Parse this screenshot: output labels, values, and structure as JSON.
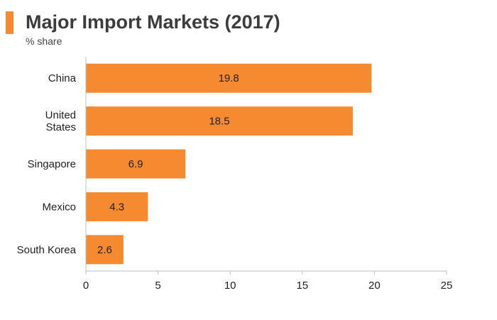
{
  "colors": {
    "accent": "#f58a30",
    "bar": "#f58a30",
    "axis": "#bfbfbf"
  },
  "chart_data": {
    "type": "bar",
    "orientation": "horizontal",
    "title": "Major Import Markets (2017)",
    "subtitle": "% share",
    "categories": [
      [
        "China"
      ],
      [
        "United",
        "States"
      ],
      [
        "Singapore"
      ],
      [
        "Mexico"
      ],
      [
        "South Korea"
      ]
    ],
    "values": [
      19.8,
      18.5,
      6.9,
      4.3,
      2.6
    ],
    "data_labels": [
      "19.8",
      "18.5",
      "6.9",
      "4.3",
      "2.6"
    ],
    "xlim": [
      0,
      25
    ],
    "xticks": [
      0,
      5,
      10,
      15,
      20,
      25
    ],
    "grid": false,
    "legend": "none"
  }
}
